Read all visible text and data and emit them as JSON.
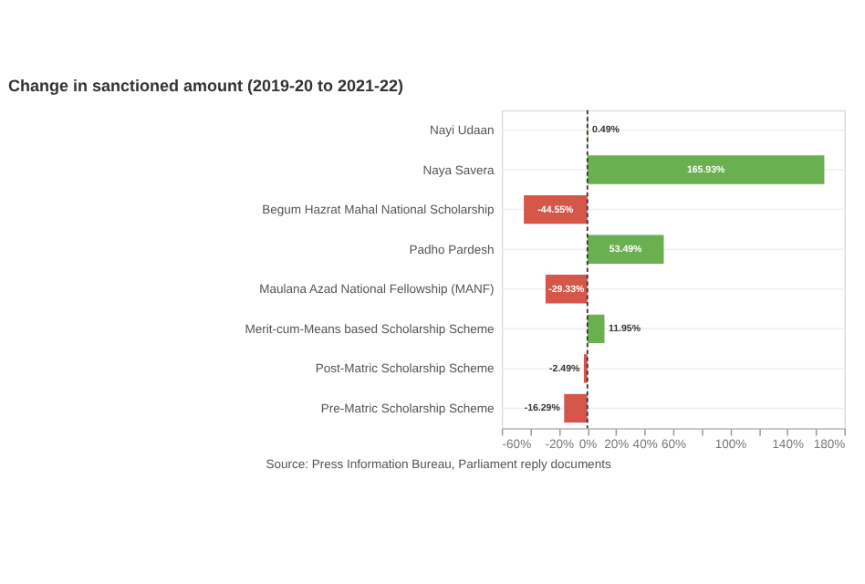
{
  "chart_data": {
    "type": "bar",
    "orientation": "horizontal",
    "title": "Change in sanctioned amount (2019-20 to 2021-22)",
    "categories": [
      "Nayi Udaan",
      "Naya Savera",
      "Begum Hazrat Mahal National Scholarship",
      "Padho Pardesh",
      "Maulana Azad National Fellowship (MANF)",
      "Merit-cum-Means based Scholarship Scheme",
      "Post-Matric Scholarship Scheme",
      "Pre-Matric Scholarship Scheme"
    ],
    "values": [
      0.49,
      165.93,
      -44.55,
      53.49,
      -29.33,
      11.95,
      -2.49,
      -16.29
    ],
    "value_labels": [
      "0.49%",
      "165.93%",
      "-44.55%",
      "53.49%",
      "-29.33%",
      "11.95%",
      "-2.49%",
      "-16.29%"
    ],
    "colors": [
      "#6aaf50",
      "#6aaf50",
      "#d4574a",
      "#6aaf50",
      "#d4574a",
      "#6aaf50",
      "#d4574a",
      "#d4574a"
    ],
    "xlim": [
      -60,
      180
    ],
    "xticks": [
      {
        "value": -60,
        "label": "-60%"
      },
      {
        "value": -40,
        "label": null
      },
      {
        "value": -20,
        "label": "-20%"
      },
      {
        "value": 0,
        "label": "0%"
      },
      {
        "value": 20,
        "label": "20%"
      },
      {
        "value": 40,
        "label": "40%"
      },
      {
        "value": 60,
        "label": "60%"
      },
      {
        "value": 80,
        "label": null
      },
      {
        "value": 100,
        "label": "100%"
      },
      {
        "value": 120,
        "label": null
      },
      {
        "value": 140,
        "label": "140%"
      },
      {
        "value": 160,
        "label": null
      },
      {
        "value": 180,
        "label": "180%"
      }
    ],
    "ref_lines": [
      {
        "axis": "x",
        "value": 0,
        "color": "#333333",
        "line_style": "dashed"
      }
    ],
    "grid": "y",
    "annotations": [
      "Source: Press Information Bureau, Parliament reply documents"
    ]
  }
}
